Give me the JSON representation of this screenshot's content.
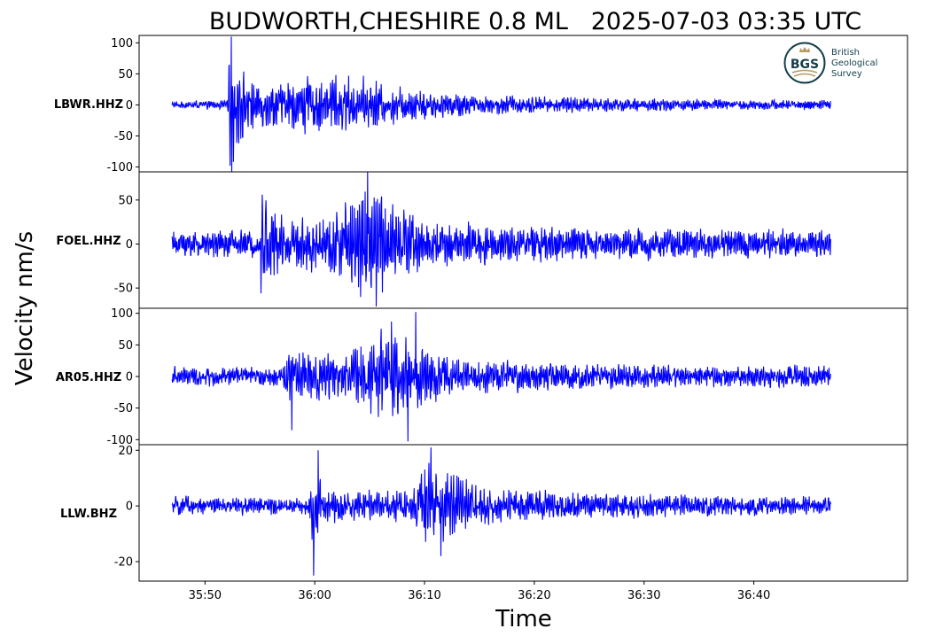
{
  "title": "BUDWORTH,CHESHIRE 0.8 ML   2025-07-03 03:35 UTC",
  "ylabel": "Velocity nm/s",
  "xlabel": "Time",
  "logo": {
    "badge_text": "BGS",
    "lines": [
      "British",
      "Geological",
      "Survey"
    ],
    "colors": {
      "dark": "#143d4a",
      "gold": "#b89a5f"
    }
  },
  "colors": {
    "trace": "#0000ff",
    "axes": "#000000",
    "background": "#ffffff"
  },
  "chart_data": {
    "type": "line",
    "x_unit": "time (mm:ss after 03:00 UTC, 2025-07-03)",
    "xlim": [
      "35:44",
      "36:54"
    ],
    "x_ticks": [
      "35:50",
      "36:00",
      "36:10",
      "36:20",
      "36:30",
      "36:40"
    ],
    "trace_start": "35:47",
    "trace_end": "36:47",
    "grid": false,
    "panels": [
      {
        "station": "LBWR.HHZ",
        "ylim": [
          -108,
          112
        ],
        "y_ticks": [
          100,
          50,
          0,
          -50,
          -100
        ],
        "noise_amplitude": 6,
        "envelope": [
          {
            "t": "35:47",
            "amp": 6
          },
          {
            "t": "35:52",
            "amp": 6
          },
          {
            "t": "35:52.3",
            "amp": 105
          },
          {
            "t": "35:53",
            "amp": 55
          },
          {
            "t": "35:55",
            "amp": 32
          },
          {
            "t": "35:58",
            "amp": 40
          },
          {
            "t": "36:01",
            "amp": 45
          },
          {
            "t": "36:04",
            "amp": 42
          },
          {
            "t": "36:08",
            "amp": 25
          },
          {
            "t": "36:15",
            "amp": 15
          },
          {
            "t": "36:25",
            "amp": 12
          },
          {
            "t": "36:35",
            "amp": 8
          },
          {
            "t": "36:47",
            "amp": 7
          }
        ],
        "extremes": [
          {
            "t": "35:52.4",
            "value": 110
          },
          {
            "t": "35:52.3",
            "value": -98
          },
          {
            "t": "35:52.6",
            "value": -92
          }
        ]
      },
      {
        "station": "FOEL.HHZ",
        "ylim": [
          -73,
          82
        ],
        "y_ticks": [
          50,
          0,
          -50
        ],
        "noise_amplitude": 14,
        "envelope": [
          {
            "t": "35:47",
            "amp": 14
          },
          {
            "t": "35:55",
            "amp": 14
          },
          {
            "t": "35:55.2",
            "amp": 45
          },
          {
            "t": "35:58",
            "amp": 26
          },
          {
            "t": "36:01",
            "amp": 32
          },
          {
            "t": "36:03",
            "amp": 48
          },
          {
            "t": "36:05",
            "amp": 70
          },
          {
            "t": "36:07",
            "amp": 42
          },
          {
            "t": "36:10",
            "amp": 28
          },
          {
            "t": "36:15",
            "amp": 22
          },
          {
            "t": "36:25",
            "amp": 18
          },
          {
            "t": "36:40",
            "amp": 15
          },
          {
            "t": "36:47",
            "amp": 14
          }
        ],
        "extremes": [
          {
            "t": "36:04.8",
            "value": 82
          },
          {
            "t": "36:05.6",
            "value": -71
          },
          {
            "t": "35:55.2",
            "value": 56
          },
          {
            "t": "35:55.1",
            "value": -56
          }
        ]
      },
      {
        "station": "AR05.HHZ",
        "ylim": [
          -108,
          108
        ],
        "y_ticks": [
          100,
          50,
          0,
          -50,
          -100
        ],
        "noise_amplitude": 14,
        "envelope": [
          {
            "t": "35:47",
            "amp": 14
          },
          {
            "t": "35:57",
            "amp": 14
          },
          {
            "t": "35:57.5",
            "amp": 40
          },
          {
            "t": "36:00",
            "amp": 35
          },
          {
            "t": "36:03",
            "amp": 40
          },
          {
            "t": "36:06",
            "amp": 65
          },
          {
            "t": "36:08",
            "amp": 55
          },
          {
            "t": "36:12",
            "amp": 30
          },
          {
            "t": "36:20",
            "amp": 20
          },
          {
            "t": "36:35",
            "amp": 16
          },
          {
            "t": "36:47",
            "amp": 17
          }
        ],
        "extremes": [
          {
            "t": "36:09.2",
            "value": 102
          },
          {
            "t": "36:08.5",
            "value": -103
          },
          {
            "t": "35:57.9",
            "value": -85
          },
          {
            "t": "36:07.0",
            "value": 87
          }
        ]
      },
      {
        "station": "LLW.BHZ",
        "ylim": [
          -27,
          22
        ],
        "y_ticks": [
          20,
          0,
          -20
        ],
        "noise_amplitude": 3,
        "envelope": [
          {
            "t": "35:47",
            "amp": 3
          },
          {
            "t": "35:59.5",
            "amp": 3
          },
          {
            "t": "35:59.8",
            "amp": 14
          },
          {
            "t": "36:01",
            "amp": 6
          },
          {
            "t": "36:04",
            "amp": 5
          },
          {
            "t": "36:09",
            "amp": 6
          },
          {
            "t": "36:10",
            "amp": 15
          },
          {
            "t": "36:12",
            "amp": 11
          },
          {
            "t": "36:16",
            "amp": 6
          },
          {
            "t": "36:25",
            "amp": 4
          },
          {
            "t": "36:47",
            "amp": 3
          }
        ],
        "extremes": [
          {
            "t": "35:59.9",
            "value": -25
          },
          {
            "t": "36:00.3",
            "value": 20
          },
          {
            "t": "36:10.6",
            "value": 21
          },
          {
            "t": "36:11.5",
            "value": -18
          }
        ]
      }
    ]
  }
}
